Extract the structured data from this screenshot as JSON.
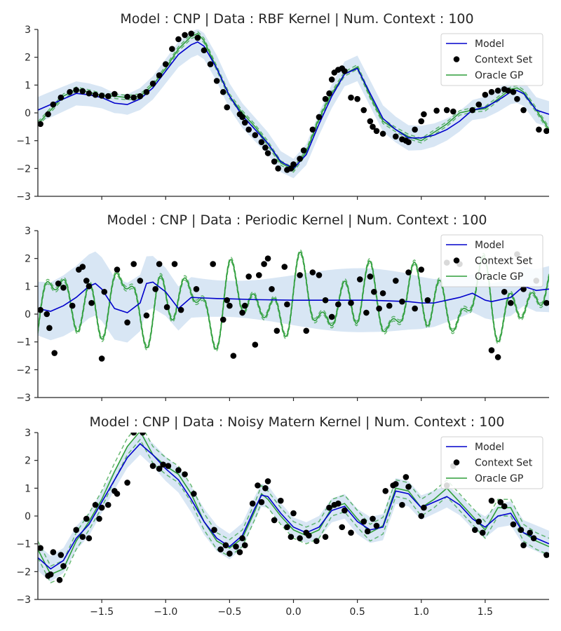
{
  "colors": {
    "model": "#0000cc",
    "band": "#a9c8e6",
    "context": "#000000",
    "oracle": "#2e9e3a",
    "axis": "#262626"
  },
  "chart_data": [
    {
      "type": "line",
      "title": "Model : CNP | Data : RBF Kernel | Num. Context : 100",
      "xlim": [
        -2,
        2
      ],
      "ylim": [
        -3,
        3
      ],
      "xticks": [
        -1.5,
        -1.0,
        -0.5,
        0.0,
        0.5,
        1.0,
        1.5
      ],
      "xtick_labels": [
        "−1.5",
        "−1.0",
        "−0.5",
        "0.0",
        "0.5",
        "1.0",
        "1.5"
      ],
      "yticks": [
        -3,
        -2,
        -1,
        0,
        1,
        2,
        3
      ],
      "ytick_labels": [
        "−3",
        "−2",
        "−1",
        "0",
        "1",
        "2",
        "3"
      ],
      "legend": {
        "placement": "top-right",
        "entries": [
          "Model",
          "Context Set",
          "Oracle GP"
        ]
      },
      "series": [
        {
          "name": "Model",
          "x": [
            -2.0,
            -1.9,
            -1.8,
            -1.7,
            -1.6,
            -1.5,
            -1.4,
            -1.3,
            -1.2,
            -1.1,
            -1.0,
            -0.9,
            -0.8,
            -0.75,
            -0.7,
            -0.6,
            -0.5,
            -0.4,
            -0.3,
            -0.2,
            -0.1,
            0.0,
            0.1,
            0.2,
            0.3,
            0.4,
            0.5,
            0.6,
            0.7,
            0.8,
            0.9,
            1.0,
            1.1,
            1.2,
            1.3,
            1.4,
            1.5,
            1.6,
            1.7,
            1.75,
            1.8,
            1.9,
            2.0
          ],
          "y": [
            0.1,
            0.3,
            0.5,
            0.7,
            0.65,
            0.55,
            0.35,
            0.3,
            0.5,
            0.9,
            1.5,
            2.1,
            2.45,
            2.55,
            2.4,
            1.6,
            0.6,
            -0.1,
            -0.6,
            -1.1,
            -1.75,
            -2.0,
            -1.5,
            -0.4,
            0.6,
            1.4,
            1.6,
            0.7,
            -0.2,
            -0.6,
            -0.9,
            -0.9,
            -0.8,
            -0.6,
            -0.3,
            0.1,
            0.2,
            0.45,
            0.75,
            0.8,
            0.7,
            0.1,
            -0.05
          ]
        },
        {
          "name": "Oracle GP",
          "x": [
            -2.0,
            -1.9,
            -1.8,
            -1.7,
            -1.6,
            -1.5,
            -1.4,
            -1.3,
            -1.2,
            -1.1,
            -1.0,
            -0.9,
            -0.8,
            -0.75,
            -0.7,
            -0.6,
            -0.5,
            -0.4,
            -0.3,
            -0.2,
            -0.1,
            0.0,
            0.1,
            0.2,
            0.3,
            0.4,
            0.5,
            0.6,
            0.7,
            0.8,
            0.9,
            1.0,
            1.1,
            1.2,
            1.3,
            1.4,
            1.5,
            1.6,
            1.7,
            1.75,
            1.8,
            1.9,
            2.0
          ],
          "y": [
            -0.4,
            0.1,
            0.6,
            0.85,
            0.75,
            0.62,
            0.6,
            0.55,
            0.6,
            1.0,
            1.6,
            2.3,
            2.75,
            2.85,
            2.6,
            1.6,
            0.6,
            0.0,
            -0.5,
            -1.1,
            -1.8,
            -2.05,
            -1.4,
            -0.2,
            0.7,
            1.4,
            1.65,
            0.6,
            -0.3,
            -0.6,
            -0.85,
            -1.0,
            -0.7,
            -0.4,
            0.0,
            0.1,
            0.15,
            0.5,
            0.85,
            0.9,
            0.75,
            0.1,
            -0.6
          ]
        },
        {
          "name": "Context Set",
          "kind": "scatter",
          "x": [
            -1.98,
            -1.92,
            -1.88,
            -1.82,
            -1.75,
            -1.7,
            -1.65,
            -1.6,
            -1.55,
            -1.5,
            -1.45,
            -1.4,
            -1.3,
            -1.25,
            -1.2,
            -1.15,
            -1.1,
            -1.05,
            -1.0,
            -0.95,
            -0.9,
            -0.85,
            -0.8,
            -0.75,
            -0.7,
            -0.65,
            -0.6,
            -0.55,
            -0.52,
            -0.42,
            -0.4,
            -0.38,
            -0.35,
            -0.3,
            -0.25,
            -0.22,
            -0.2,
            -0.15,
            -0.12,
            -0.05,
            -0.02,
            0.0,
            0.05,
            0.08,
            0.15,
            0.2,
            0.25,
            0.28,
            0.3,
            0.32,
            0.35,
            0.38,
            0.4,
            0.45,
            0.5,
            0.55,
            0.6,
            0.62,
            0.65,
            0.7,
            0.8,
            0.85,
            0.88,
            0.9,
            0.95,
            1.0,
            1.02,
            1.12,
            1.2,
            1.25,
            1.4,
            1.45,
            1.5,
            1.55,
            1.6,
            1.65,
            1.68,
            1.72,
            1.75,
            1.8,
            1.92,
            1.98
          ],
          "y": [
            -0.4,
            -0.05,
            0.3,
            0.55,
            0.75,
            0.82,
            0.78,
            0.7,
            0.65,
            0.62,
            0.6,
            0.68,
            0.58,
            0.55,
            0.6,
            0.75,
            1.05,
            1.35,
            1.75,
            2.3,
            2.65,
            2.8,
            2.85,
            2.7,
            2.25,
            1.75,
            1.15,
            0.75,
            0.2,
            -0.05,
            -0.15,
            -0.35,
            -0.6,
            -0.8,
            -1.05,
            -1.25,
            -1.45,
            -1.75,
            -2.0,
            -2.05,
            -2.0,
            -1.85,
            -1.65,
            -1.35,
            -0.6,
            -0.15,
            0.5,
            0.7,
            1.2,
            1.45,
            1.55,
            1.6,
            1.5,
            0.55,
            0.5,
            0.1,
            -0.3,
            -0.5,
            -0.65,
            -0.75,
            -0.85,
            -0.95,
            -1.0,
            -1.05,
            -0.6,
            -0.3,
            -0.05,
            0.08,
            0.1,
            0.05,
            0.1,
            0.3,
            0.65,
            0.75,
            0.8,
            0.85,
            0.8,
            0.75,
            0.5,
            0.1,
            -0.6,
            -0.65
          ]
        }
      ]
    },
    {
      "type": "line",
      "title": "Model : CNP | Data : Periodic Kernel | Num. Context : 100",
      "xlim": [
        -2,
        2
      ],
      "ylim": [
        -3,
        3
      ],
      "xticks": [
        -1.5,
        -1.0,
        -0.5,
        0.0,
        0.5,
        1.0,
        1.5
      ],
      "xtick_labels": [
        "−1.5",
        "−1.0",
        "−0.5",
        "0.0",
        "0.5",
        "1.0",
        "1.5"
      ],
      "yticks": [
        -3,
        -2,
        -1,
        0,
        1,
        2,
        3
      ],
      "ytick_labels": [
        "−3",
        "−2",
        "−1",
        "0",
        "1",
        "2",
        "3"
      ],
      "legend": {
        "placement": "top-right",
        "entries": [
          "Model",
          "Context Set",
          "Oracle GP"
        ]
      },
      "series": [
        {
          "name": "Model",
          "x": [
            -2.0,
            -1.9,
            -1.8,
            -1.7,
            -1.6,
            -1.55,
            -1.5,
            -1.4,
            -1.3,
            -1.2,
            -1.15,
            -1.1,
            -1.0,
            -0.9,
            -0.8,
            -0.7,
            -0.6,
            -0.5,
            -0.3,
            0.0,
            0.3,
            0.6,
            0.9,
            1.0,
            1.1,
            1.2,
            1.3,
            1.4,
            1.5,
            1.55,
            1.6,
            1.7,
            1.8,
            1.9,
            2.0
          ],
          "y": [
            0.2,
            0.1,
            0.3,
            0.6,
            1.0,
            1.1,
            0.9,
            0.2,
            0.05,
            0.4,
            1.1,
            1.15,
            0.8,
            0.2,
            0.6,
            0.58,
            0.56,
            0.55,
            0.52,
            0.5,
            0.5,
            0.5,
            0.45,
            0.4,
            0.4,
            0.5,
            0.6,
            0.75,
            0.5,
            0.45,
            0.5,
            0.6,
            1.0,
            0.85,
            0.9
          ]
        },
        {
          "name": "Oracle GP",
          "periodic": true,
          "x_start": -2.0,
          "x_end": 2.0,
          "amplitude_note": "oscillates between about -1.6 and 2.4"
        },
        {
          "name": "Context Set",
          "kind": "scatter",
          "x": [
            -1.98,
            -1.93,
            -1.91,
            -1.87,
            -1.84,
            -1.8,
            -1.73,
            -1.68,
            -1.65,
            -1.62,
            -1.6,
            -1.58,
            -1.5,
            -1.48,
            -1.38,
            -1.3,
            -1.25,
            -1.2,
            -1.15,
            -1.08,
            -1.05,
            -0.99,
            -0.93,
            -0.88,
            -0.76,
            -0.63,
            -0.55,
            -0.52,
            -0.5,
            -0.47,
            -0.4,
            -0.38,
            -0.35,
            -0.3,
            -0.27,
            -0.23,
            -0.2,
            -0.17,
            -0.13,
            -0.07,
            -0.05,
            0.05,
            0.1,
            0.15,
            0.2,
            0.25,
            0.3,
            0.35,
            0.45,
            0.52,
            0.57,
            0.6,
            0.63,
            0.67,
            0.7,
            0.75,
            0.8,
            0.85,
            0.9,
            0.95,
            1.0,
            1.05,
            1.2,
            1.3,
            1.55,
            1.6,
            1.65,
            1.7,
            1.75,
            1.8,
            1.9,
            1.98
          ],
          "y": [
            0.15,
            0.0,
            -0.5,
            -1.4,
            1.1,
            0.95,
            0.3,
            1.6,
            1.7,
            1.2,
            1.0,
            0.4,
            -1.6,
            0.8,
            1.6,
            -0.3,
            1.8,
            1.2,
            -0.05,
            0.9,
            1.8,
            0.25,
            1.8,
            0.15,
            0.9,
            1.8,
            -0.2,
            0.5,
            0.3,
            -1.5,
            0.05,
            0.3,
            1.35,
            -1.1,
            1.4,
            1.8,
            2.0,
            0.9,
            -0.6,
            1.7,
            0.35,
            1.4,
            -0.6,
            1.5,
            1.4,
            0.5,
            -0.1,
            0.35,
            0.4,
            1.25,
            0.05,
            1.35,
            0.8,
            0.2,
            0.75,
            0.3,
            1.2,
            0.45,
            1.5,
            0.2,
            1.6,
            0.5,
            1.85,
            1.8,
            -1.3,
            -1.55,
            0.8,
            0.4,
            2.15,
            0.9,
            1.2,
            0.4
          ]
        }
      ]
    },
    {
      "type": "line",
      "title": "Model : CNP | Data : Noisy Matern Kernel | Num. Context : 100",
      "xlim": [
        -2,
        2
      ],
      "ylim": [
        -3,
        3
      ],
      "xticks": [
        -1.5,
        -1.0,
        -0.5,
        0.0,
        0.5,
        1.0,
        1.5
      ],
      "xtick_labels": [
        "−1.5",
        "−1.0",
        "−0.5",
        "0.0",
        "0.5",
        "1.0",
        "1.5"
      ],
      "yticks": [
        -3,
        -2,
        -1,
        0,
        1,
        2,
        3
      ],
      "ytick_labels": [
        "−3",
        "−2",
        "−1",
        "0",
        "1",
        "2",
        "3"
      ],
      "legend": {
        "placement": "top-right",
        "entries": [
          "Model",
          "Context Set",
          "Oracle GP"
        ]
      },
      "series": [
        {
          "name": "Model",
          "x": [
            -2.0,
            -1.9,
            -1.8,
            -1.7,
            -1.6,
            -1.5,
            -1.4,
            -1.3,
            -1.2,
            -1.1,
            -1.0,
            -0.9,
            -0.8,
            -0.7,
            -0.6,
            -0.5,
            -0.4,
            -0.3,
            -0.25,
            -0.2,
            -0.1,
            0.0,
            0.1,
            0.2,
            0.3,
            0.4,
            0.5,
            0.6,
            0.7,
            0.8,
            0.9,
            1.0,
            1.1,
            1.2,
            1.3,
            1.4,
            1.5,
            1.6,
            1.7,
            1.8,
            1.9,
            2.0
          ],
          "y": [
            -1.5,
            -1.9,
            -1.6,
            -0.8,
            -0.3,
            0.5,
            1.3,
            2.1,
            2.6,
            2.2,
            1.7,
            1.3,
            0.6,
            -0.2,
            -0.8,
            -1.1,
            -0.7,
            0.3,
            0.75,
            0.7,
            0.1,
            -0.4,
            -0.6,
            -0.4,
            0.2,
            0.35,
            -0.2,
            -0.5,
            -0.4,
            0.9,
            0.8,
            0.3,
            0.5,
            0.7,
            0.4,
            -0.1,
            -0.4,
            0.0,
            0.1,
            -0.6,
            -0.8,
            -1.0
          ]
        },
        {
          "name": "Oracle GP",
          "x": [
            -2.0,
            -1.9,
            -1.8,
            -1.7,
            -1.6,
            -1.5,
            -1.4,
            -1.3,
            -1.2,
            -1.1,
            -1.0,
            -0.9,
            -0.8,
            -0.7,
            -0.6,
            -0.5,
            -0.4,
            -0.3,
            -0.25,
            -0.2,
            -0.1,
            0.0,
            0.1,
            0.2,
            0.3,
            0.4,
            0.5,
            0.6,
            0.7,
            0.8,
            0.9,
            1.0,
            1.1,
            1.2,
            1.3,
            1.4,
            1.5,
            1.6,
            1.7,
            1.8,
            1.9,
            2.0
          ],
          "y": [
            -1.2,
            -2.1,
            -1.9,
            -0.9,
            -0.2,
            0.6,
            1.6,
            2.5,
            3.05,
            2.2,
            1.8,
            1.5,
            0.8,
            -0.2,
            -0.9,
            -1.15,
            -0.8,
            0.2,
            0.8,
            0.6,
            0.0,
            -0.5,
            -0.7,
            -0.5,
            0.3,
            0.45,
            -0.1,
            -0.6,
            -0.35,
            1.0,
            0.9,
            0.3,
            0.6,
            1.0,
            0.5,
            0.0,
            -0.5,
            0.3,
            0.3,
            -0.6,
            -0.9,
            -1.1
          ]
        },
        {
          "name": "Context Set",
          "kind": "scatter",
          "x": [
            -1.98,
            -1.92,
            -1.9,
            -1.88,
            -1.83,
            -1.82,
            -1.8,
            -1.7,
            -1.65,
            -1.62,
            -1.6,
            -1.55,
            -1.52,
            -1.5,
            -1.45,
            -1.4,
            -1.38,
            -1.3,
            -1.25,
            -1.18,
            -1.1,
            -1.05,
            -1.02,
            -0.98,
            -0.9,
            -0.85,
            -0.78,
            -0.62,
            -0.57,
            -0.53,
            -0.5,
            -0.45,
            -0.42,
            -0.4,
            -0.38,
            -0.32,
            -0.28,
            -0.25,
            -0.22,
            -0.2,
            -0.15,
            -0.1,
            -0.05,
            -0.02,
            0.0,
            0.05,
            0.1,
            0.12,
            0.18,
            0.25,
            0.28,
            0.32,
            0.35,
            0.38,
            0.4,
            0.45,
            0.55,
            0.58,
            0.62,
            0.65,
            0.72,
            0.78,
            0.8,
            0.85,
            0.88,
            0.9,
            1.0,
            1.02,
            1.2,
            1.25,
            1.42,
            1.45,
            1.48,
            1.55,
            1.62,
            1.65,
            1.72,
            1.78,
            1.8,
            1.85,
            1.88,
            1.98
          ],
          "y": [
            -1.15,
            -2.15,
            -2.1,
            -1.3,
            -2.3,
            -1.4,
            -1.8,
            -0.5,
            -0.75,
            -0.1,
            -0.8,
            0.4,
            -0.1,
            0.3,
            0.4,
            0.9,
            0.8,
            1.2,
            3.0,
            3.0,
            1.8,
            1.7,
            1.85,
            1.8,
            1.65,
            1.5,
            0.8,
            -0.5,
            -1.2,
            -1.05,
            -1.35,
            -1.1,
            -1.3,
            -0.8,
            -1.05,
            0.45,
            1.1,
            0.5,
            1.0,
            1.25,
            -0.15,
            0.55,
            -0.4,
            -0.75,
            0.1,
            -0.8,
            -0.6,
            -0.7,
            -0.9,
            -0.75,
            0.3,
            0.4,
            0.45,
            -0.4,
            0.2,
            -0.6,
            -0.2,
            -0.55,
            -0.1,
            -0.35,
            0.9,
            1.1,
            1.15,
            0.4,
            1.4,
            1.05,
            0.0,
            0.3,
            1.1,
            1.8,
            -0.5,
            -0.2,
            -0.6,
            0.55,
            0.5,
            0.35,
            -0.3,
            -0.5,
            -1.05,
            -0.6,
            -0.8,
            -1.4
          ]
        }
      ]
    }
  ]
}
